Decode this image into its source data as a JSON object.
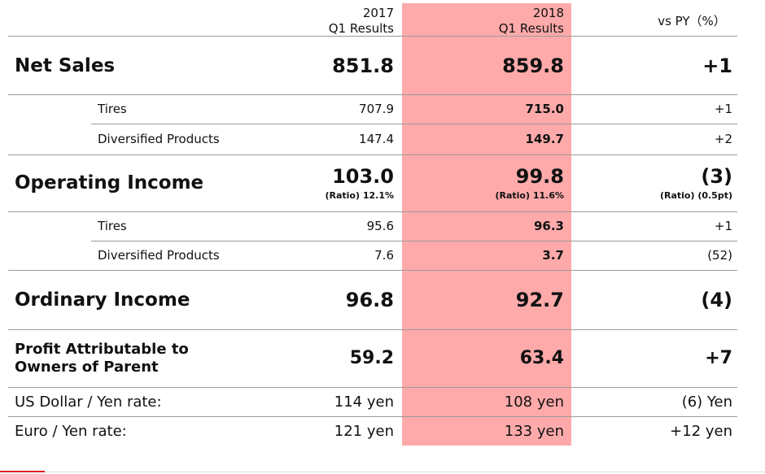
{
  "header": {
    "col1": [
      "2017",
      "Q1 Results"
    ],
    "col2": [
      "2018",
      "Q1 Results"
    ],
    "col3": "vs PY（%）"
  },
  "table": {
    "rows": [
      {
        "label": [
          "Net Sales"
        ],
        "cells": [
          "851.8",
          "859.8",
          "+1"
        ]
      },
      {
        "label": [
          "Tires"
        ],
        "cells": [
          "707.9",
          "715.0",
          "+1"
        ]
      },
      {
        "label": [
          "Diversified Products"
        ],
        "cells": [
          "147.4",
          "149.7",
          "+2"
        ]
      },
      {
        "label": [
          "Operating Income"
        ],
        "cells": [
          "103.0",
          "99.8",
          "(3)"
        ],
        "ratios": [
          "(Ratio) 12.1%",
          "(Ratio) 11.6%",
          "(Ratio) (0.5pt)"
        ]
      },
      {
        "label": [
          "Tires"
        ],
        "cells": [
          "95.6",
          "96.3",
          "+1"
        ]
      },
      {
        "label": [
          "Diversified Products"
        ],
        "cells": [
          "7.6",
          "3.7",
          "(52)"
        ]
      },
      {
        "label": [
          "Ordinary Income"
        ],
        "cells": [
          "96.8",
          "92.7",
          "(4)"
        ]
      },
      {
        "label": [
          "Profit Attributable to",
          "Owners of Parent"
        ],
        "cells": [
          "59.2",
          "63.4",
          "+7"
        ]
      },
      {
        "label": [
          "US Dollar / Yen rate:"
        ],
        "cells": [
          "114 yen",
          "108 yen",
          "(6) Yen"
        ]
      },
      {
        "label": [
          "Euro / Yen rate:"
        ],
        "cells": [
          "121 yen",
          "133 yen",
          "+12 yen"
        ]
      }
    ]
  }
}
